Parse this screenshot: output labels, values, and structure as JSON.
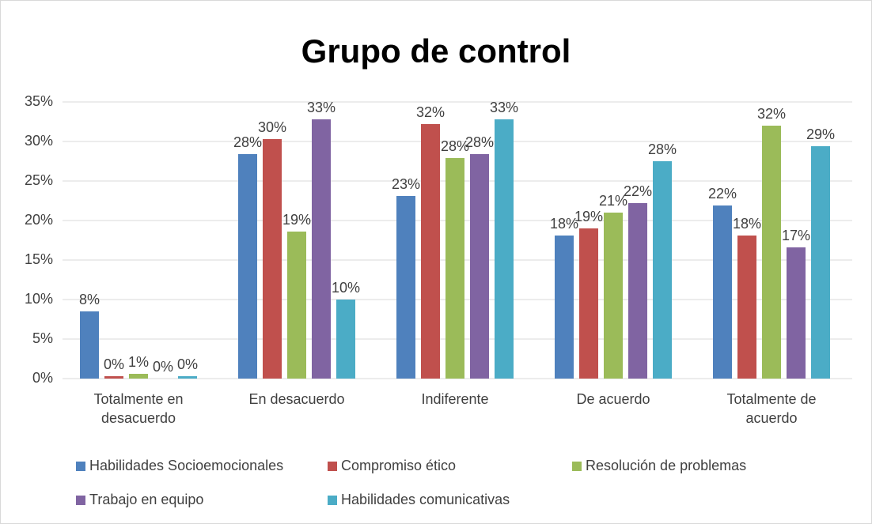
{
  "chart_data": {
    "type": "bar",
    "title": "Grupo de control",
    "categories": [
      "Totalmente en desacuerdo",
      "En desacuerdo",
      "Indiferente",
      "De acuerdo",
      "Totalmente de acuerdo"
    ],
    "series": [
      {
        "name": "Habilidades Socioemocionales",
        "color": "#4f81bd",
        "values": [
          8.5,
          28.4,
          23.1,
          18.1,
          21.9
        ],
        "value_labels": [
          "8%",
          "28%",
          "23%",
          "18%",
          "22%"
        ]
      },
      {
        "name": "Compromiso ético",
        "color": "#c0504d",
        "values": [
          0.3,
          30.3,
          32.2,
          19.0,
          18.1
        ],
        "value_labels": [
          "0%",
          "30%",
          "32%",
          "19%",
          "18%"
        ]
      },
      {
        "name": "Resolución de problemas",
        "color": "#9bbb59",
        "values": [
          0.6,
          18.6,
          27.9,
          21.0,
          32.0
        ],
        "value_labels": [
          "1%",
          "19%",
          "28%",
          "21%",
          "32%"
        ]
      },
      {
        "name": "Trabajo en equipo",
        "color": "#8064a2",
        "values": [
          0,
          32.8,
          28.4,
          22.2,
          16.6
        ],
        "value_labels": [
          "0%",
          "33%",
          "28%",
          "22%",
          "17%"
        ]
      },
      {
        "name": "Habilidades comunicativas",
        "color": "#4bacc6",
        "values": [
          0.3,
          10.0,
          32.8,
          27.5,
          29.4
        ],
        "value_labels": [
          "0%",
          "10%",
          "33%",
          "28%",
          "29%"
        ]
      }
    ],
    "ylim": [
      0,
      35
    ],
    "yticks": [
      {
        "value": 0,
        "label": "0%"
      },
      {
        "value": 5,
        "label": "5%"
      },
      {
        "value": 10,
        "label": "10%"
      },
      {
        "value": 15,
        "label": "15%"
      },
      {
        "value": 20,
        "label": "20%"
      },
      {
        "value": 25,
        "label": "25%"
      },
      {
        "value": 30,
        "label": "30%"
      },
      {
        "value": 35,
        "label": "35%"
      }
    ],
    "grid": true,
    "legend": "bottom"
  }
}
